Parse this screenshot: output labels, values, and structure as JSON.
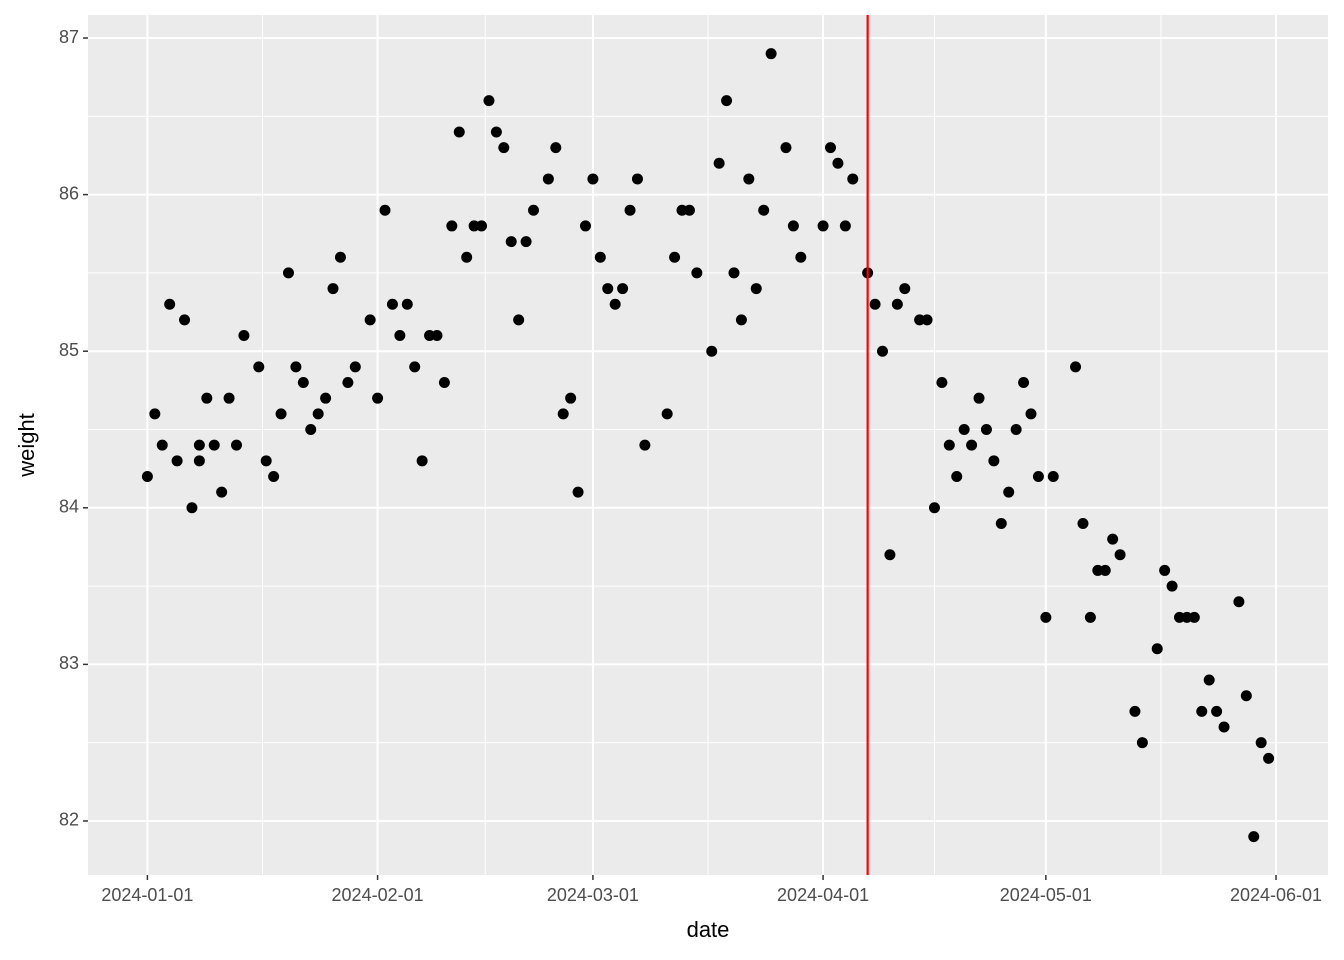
{
  "chart_data": {
    "type": "scatter",
    "x_label": "date",
    "y_label": "weight",
    "color": "black",
    "grid": true,
    "x": [
      "2024-01-01",
      "2024-01-02",
      "2024-01-03",
      "2024-01-04",
      "2024-01-05",
      "2024-01-06",
      "2024-01-07",
      "2024-01-08",
      "2024-01-08",
      "2024-01-09",
      "2024-01-10",
      "2024-01-11",
      "2024-01-12",
      "2024-01-13",
      "2024-01-14",
      "2024-01-16",
      "2024-01-17",
      "2024-01-18",
      "2024-01-19",
      "2024-01-20",
      "2024-01-21",
      "2024-01-22",
      "2024-01-23",
      "2024-01-24",
      "2024-01-25",
      "2024-01-26",
      "2024-01-27",
      "2024-01-28",
      "2024-01-29",
      "2024-01-31",
      "2024-02-01",
      "2024-02-02",
      "2024-02-03",
      "2024-02-04",
      "2024-02-05",
      "2024-02-06",
      "2024-02-07",
      "2024-02-08",
      "2024-02-09",
      "2024-02-10",
      "2024-02-11",
      "2024-02-12",
      "2024-02-13",
      "2024-02-14",
      "2024-02-15",
      "2024-02-16",
      "2024-02-17",
      "2024-02-18",
      "2024-02-19",
      "2024-02-20",
      "2024-02-21",
      "2024-02-22",
      "2024-02-24",
      "2024-02-25",
      "2024-02-26",
      "2024-02-27",
      "2024-02-28",
      "2024-02-29",
      "2024-03-01",
      "2024-03-02",
      "2024-03-03",
      "2024-03-04",
      "2024-03-05",
      "2024-03-06",
      "2024-03-07",
      "2024-03-08",
      "2024-03-11",
      "2024-03-12",
      "2024-03-13",
      "2024-03-14",
      "2024-03-15",
      "2024-03-17",
      "2024-03-18",
      "2024-03-19",
      "2024-03-20",
      "2024-03-21",
      "2024-03-22",
      "2024-03-23",
      "2024-03-24",
      "2024-03-25",
      "2024-03-27",
      "2024-03-28",
      "2024-03-29",
      "2024-04-01",
      "2024-04-02",
      "2024-04-03",
      "2024-04-04",
      "2024-04-05",
      "2024-04-07",
      "2024-04-08",
      "2024-04-09",
      "2024-04-10",
      "2024-04-11",
      "2024-04-12",
      "2024-04-14",
      "2024-04-15",
      "2024-04-16",
      "2024-04-17",
      "2024-04-18",
      "2024-04-19",
      "2024-04-20",
      "2024-04-21",
      "2024-04-22",
      "2024-04-23",
      "2024-04-24",
      "2024-04-25",
      "2024-04-26",
      "2024-04-27",
      "2024-04-28",
      "2024-04-29",
      "2024-04-30",
      "2024-05-01",
      "2024-05-02",
      "2024-05-05",
      "2024-05-06",
      "2024-05-07",
      "2024-05-08",
      "2024-05-09",
      "2024-05-10",
      "2024-05-11",
      "2024-05-13",
      "2024-05-14",
      "2024-05-16",
      "2024-05-17",
      "2024-05-18",
      "2024-05-19",
      "2024-05-20",
      "2024-05-21",
      "2024-05-22",
      "2024-05-23",
      "2024-05-24",
      "2024-05-25",
      "2024-05-27",
      "2024-05-28",
      "2024-05-29",
      "2024-05-30",
      "2024-05-31"
    ],
    "y": [
      84.2,
      84.6,
      84.4,
      85.3,
      84.3,
      85.2,
      84.0,
      84.4,
      84.3,
      84.7,
      84.4,
      84.1,
      84.7,
      84.4,
      85.1,
      84.9,
      84.3,
      84.2,
      84.6,
      85.5,
      84.9,
      84.8,
      84.5,
      84.6,
      84.7,
      85.4,
      85.6,
      84.8,
      84.9,
      85.2,
      84.7,
      85.9,
      85.3,
      85.1,
      85.3,
      84.9,
      84.3,
      85.1,
      85.1,
      84.8,
      85.8,
      86.4,
      85.6,
      85.8,
      85.8,
      86.6,
      86.4,
      86.3,
      85.7,
      85.2,
      85.7,
      85.9,
      86.1,
      86.3,
      84.6,
      84.7,
      84.1,
      85.8,
      86.1,
      85.6,
      85.4,
      85.3,
      85.4,
      85.9,
      86.1,
      84.4,
      84.6,
      85.6,
      85.9,
      85.9,
      85.5,
      85.0,
      86.2,
      86.6,
      85.5,
      85.2,
      86.1,
      85.4,
      85.9,
      86.9,
      86.3,
      85.8,
      85.6,
      85.8,
      86.3,
      86.2,
      85.8,
      86.1,
      85.5,
      85.3,
      85.0,
      83.7,
      85.3,
      85.4,
      85.2,
      85.2,
      84.0,
      84.8,
      84.4,
      84.2,
      84.5,
      84.4,
      84.7,
      84.5,
      84.3,
      83.9,
      84.1,
      84.5,
      84.8,
      84.6,
      84.2,
      83.3,
      84.2,
      84.9,
      83.9,
      83.3,
      83.6,
      83.6,
      83.8,
      83.7,
      82.7,
      82.5,
      83.1,
      83.6,
      83.5,
      83.3,
      83.3,
      83.3,
      82.7,
      82.9,
      82.7,
      82.6,
      83.4,
      82.8,
      81.9,
      82.5,
      82.4
    ],
    "xlim": [
      "2023-12-24",
      "2024-06-08"
    ],
    "xticks": [
      "2024-01-01",
      "2024-02-01",
      "2024-03-01",
      "2024-04-01",
      "2024-05-01",
      "2024-06-01"
    ],
    "ylim": [
      81.655,
      87.147
    ],
    "yticks": [
      82,
      83,
      84,
      85,
      86,
      87
    ],
    "vline": {
      "x": "2024-04-07",
      "color": "red"
    }
  }
}
